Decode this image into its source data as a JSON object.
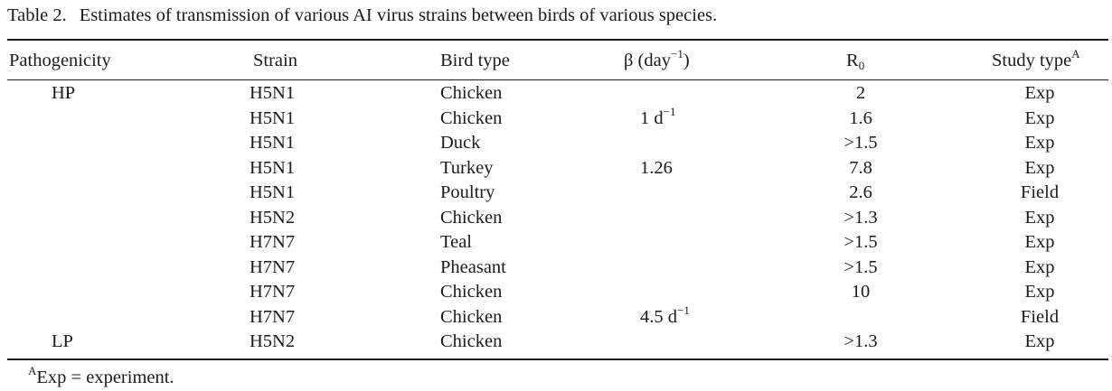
{
  "caption": {
    "number": "Table 2.",
    "text": "Estimates of transmission of various AI virus strains between birds of various species."
  },
  "columns": {
    "pathogenicity": "Pathogenicity",
    "strain": "Strain",
    "bird_type": "Bird type",
    "beta": "β (day",
    "beta_exp": "−1",
    "beta_close": ")",
    "r0_base": "R",
    "r0_sub": "0",
    "study": "Study type",
    "study_sup": "A"
  },
  "rows": [
    {
      "pathogenicity": "HP",
      "strain": "H5N1",
      "bird": "Chicken",
      "beta": "",
      "beta_exp": "",
      "r0": "2",
      "study": "Exp"
    },
    {
      "pathogenicity": "",
      "strain": "H5N1",
      "bird": "Chicken",
      "beta": "1 d",
      "beta_exp": "−1",
      "r0": "1.6",
      "study": "Exp"
    },
    {
      "pathogenicity": "",
      "strain": "H5N1",
      "bird": "Duck",
      "beta": "",
      "beta_exp": "",
      "r0": ">1.5",
      "study": "Exp"
    },
    {
      "pathogenicity": "",
      "strain": "H5N1",
      "bird": "Turkey",
      "beta": "1.26",
      "beta_exp": "",
      "r0": "7.8",
      "study": "Exp"
    },
    {
      "pathogenicity": "",
      "strain": "H5N1",
      "bird": "Poultry",
      "beta": "",
      "beta_exp": "",
      "r0": "2.6",
      "study": "Field"
    },
    {
      "pathogenicity": "",
      "strain": "H5N2",
      "bird": "Chicken",
      "beta": "",
      "beta_exp": "",
      "r0": ">1.3",
      "study": "Exp"
    },
    {
      "pathogenicity": "",
      "strain": "H7N7",
      "bird": "Teal",
      "beta": "",
      "beta_exp": "",
      "r0": ">1.5",
      "study": "Exp"
    },
    {
      "pathogenicity": "",
      "strain": "H7N7",
      "bird": "Pheasant",
      "beta": "",
      "beta_exp": "",
      "r0": ">1.5",
      "study": "Exp"
    },
    {
      "pathogenicity": "",
      "strain": "H7N7",
      "bird": "Chicken",
      "beta": "",
      "beta_exp": "",
      "r0": "10",
      "study": "Exp"
    },
    {
      "pathogenicity": "",
      "strain": "H7N7",
      "bird": "Chicken",
      "beta": "4.5 d",
      "beta_exp": "−1",
      "r0": "",
      "study": "Field"
    },
    {
      "pathogenicity": "LP",
      "strain": "H5N2",
      "bird": "Chicken",
      "beta": "",
      "beta_exp": "",
      "r0": ">1.3",
      "study": "Exp"
    }
  ],
  "footnote": {
    "marker": "A",
    "text": "Exp = experiment."
  }
}
